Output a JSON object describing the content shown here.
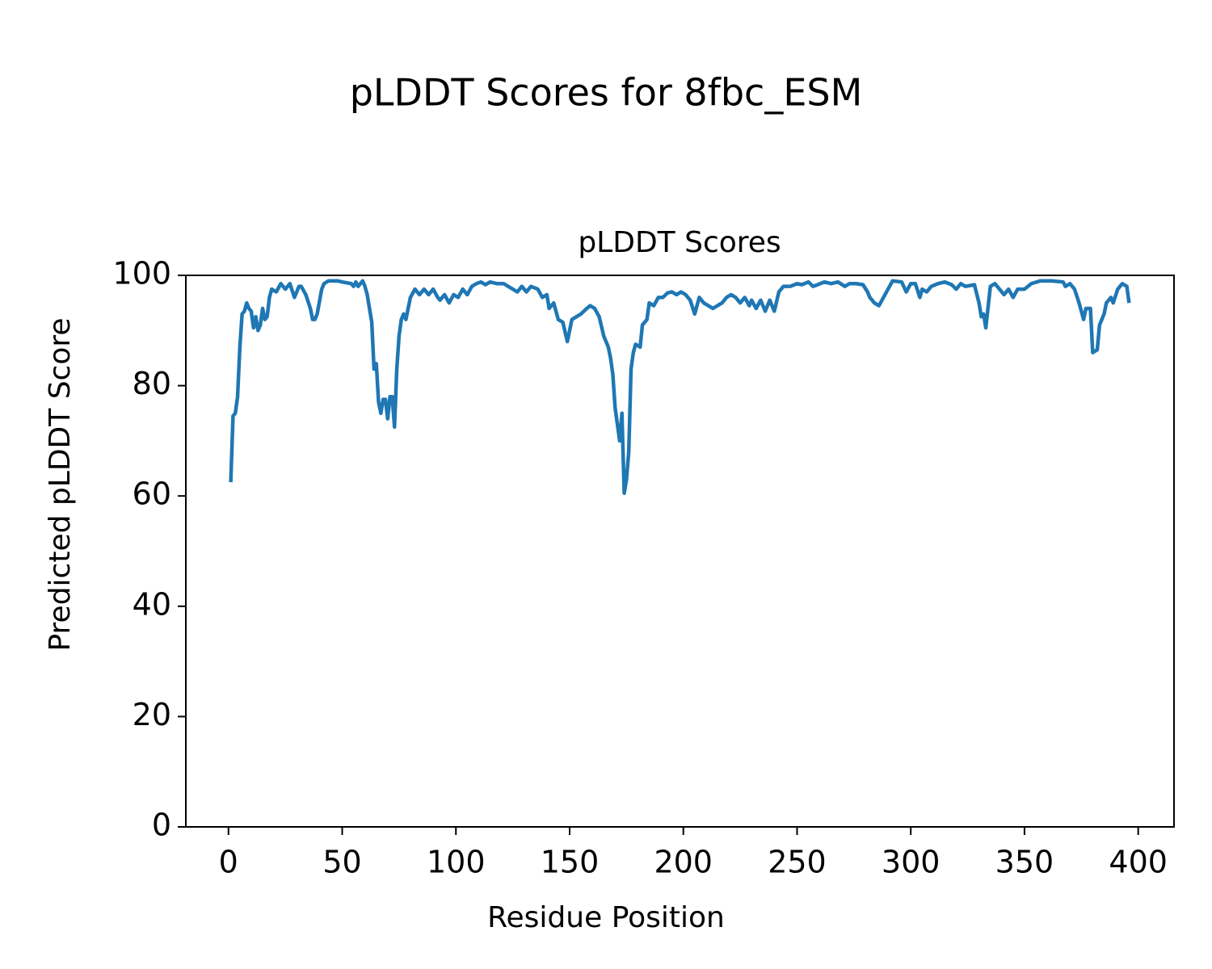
{
  "chart_data": {
    "type": "line",
    "suptitle": "pLDDT Scores for 8fbc_ESM",
    "title": "pLDDT Scores",
    "xlabel": "Residue Position",
    "ylabel": "Predicted pLDDT Score",
    "xlim": [
      -18.75,
      415.75
    ],
    "ylim": [
      0,
      100
    ],
    "xticks": [
      0,
      50,
      100,
      150,
      200,
      250,
      300,
      350,
      400
    ],
    "yticks": [
      0,
      20,
      40,
      60,
      80,
      100
    ],
    "grid": false,
    "x": [
      1,
      2,
      3,
      4,
      5,
      6,
      7,
      8,
      9,
      10,
      11,
      12,
      13,
      14,
      15,
      16,
      17,
      18,
      19,
      21,
      23,
      25,
      27,
      29,
      31,
      32,
      34,
      36,
      37,
      38,
      39,
      41,
      42,
      44,
      48,
      50,
      54,
      55,
      56,
      57,
      58,
      59,
      60,
      61,
      62,
      63,
      64,
      65,
      66,
      67,
      68,
      69,
      70,
      71,
      72,
      73,
      74,
      75,
      76,
      77,
      78,
      80,
      82,
      84,
      86,
      88,
      90,
      92,
      93,
      95,
      97,
      99,
      101,
      103,
      105,
      107,
      109,
      111,
      113,
      115,
      118,
      121,
      123,
      125,
      127,
      129,
      131,
      133,
      136,
      138,
      140,
      141,
      143,
      145,
      147,
      149,
      150,
      151,
      153,
      155,
      157,
      159,
      161,
      163,
      165,
      167,
      168,
      169,
      170,
      171,
      172,
      173,
      174,
      175,
      176,
      177,
      178,
      179,
      181,
      182,
      184,
      185,
      187,
      189,
      191,
      193,
      195,
      197,
      199,
      201,
      203,
      205,
      207,
      209,
      211,
      213,
      215,
      217,
      219,
      221,
      223,
      225,
      227,
      229,
      230,
      232,
      234,
      236,
      238,
      240,
      242,
      244,
      247,
      250,
      252,
      255,
      257,
      259,
      262,
      265,
      268,
      271,
      273,
      276,
      279,
      281,
      282,
      284,
      286,
      288,
      290,
      292,
      296,
      298,
      300,
      302,
      304,
      305,
      307,
      309,
      312,
      315,
      318,
      320,
      322,
      324,
      328,
      330,
      331,
      332,
      333,
      335,
      337,
      339,
      341,
      343,
      345,
      347,
      350,
      353,
      357,
      362,
      367,
      368,
      370,
      372,
      374,
      376,
      377,
      379,
      380,
      382,
      383,
      385,
      386,
      388,
      389,
      391,
      393,
      395,
      396
    ],
    "series": [
      {
        "color": "#1f77b4",
        "values": [
          62.5,
          74.5,
          75,
          78,
          87,
          93,
          93.5,
          95,
          94,
          93.5,
          90.5,
          92.5,
          90,
          91,
          94,
          92,
          92.5,
          96,
          97.5,
          97,
          98.5,
          97.5,
          98.5,
          96,
          98,
          98,
          96.5,
          94,
          92,
          92,
          93,
          97.5,
          98.5,
          99,
          99,
          98.8,
          98.5,
          98,
          98.8,
          98,
          98.5,
          99,
          98,
          96.5,
          94,
          91.5,
          83,
          84,
          77,
          75,
          77.5,
          77.5,
          74,
          78,
          78,
          72.5,
          83,
          89,
          92,
          93,
          92,
          96,
          97.5,
          96.5,
          97.5,
          96.5,
          97.5,
          96,
          95.5,
          96.5,
          95,
          96.5,
          96,
          97.5,
          96.5,
          98,
          98.5,
          98.8,
          98.3,
          98.8,
          98.5,
          98.5,
          98,
          97.5,
          97,
          98,
          97,
          98,
          97.5,
          96,
          96.5,
          94,
          95,
          92,
          91.5,
          88,
          90,
          92,
          92.5,
          93,
          93.8,
          94.5,
          94,
          92.5,
          89,
          87,
          85,
          82,
          76,
          73,
          70,
          75,
          60.5,
          63,
          68,
          83,
          86,
          87.5,
          87,
          91,
          92,
          95,
          94.5,
          96,
          96,
          96.8,
          97,
          96.5,
          97,
          96.5,
          95.5,
          93,
          96,
          95,
          94.5,
          94,
          94.5,
          95,
          96,
          96.5,
          96,
          95,
          96,
          94.5,
          95.5,
          94,
          95.5,
          93.5,
          95.5,
          93.5,
          97,
          98,
          98,
          98.5,
          98.3,
          98.8,
          98,
          98.3,
          98.8,
          98.5,
          98.8,
          98,
          98.5,
          98.5,
          98.3,
          97,
          96,
          95,
          94.5,
          96,
          97.5,
          99,
          98.8,
          97,
          98.5,
          98.5,
          96,
          97.5,
          97,
          98,
          98.5,
          98.8,
          98.3,
          97.5,
          98.5,
          98,
          98.3,
          95,
          92.5,
          93,
          90.5,
          98,
          98.5,
          97.5,
          96.5,
          97.5,
          96,
          97.5,
          97.5,
          98.5,
          99,
          99,
          98.8,
          98,
          98.5,
          97.5,
          95,
          92,
          94,
          94,
          86,
          86.5,
          91,
          93,
          95,
          96,
          95,
          97.5,
          98.5,
          98,
          95
        ]
      }
    ]
  }
}
